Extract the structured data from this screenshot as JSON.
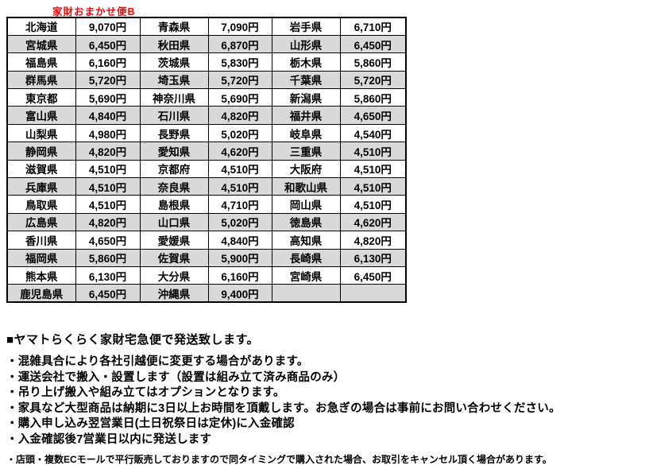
{
  "title": "家財おまかせ便B",
  "colors": {
    "title": "#FF0000",
    "row_alt": "#D9D9D9",
    "border": "#000000"
  },
  "table": {
    "rows": [
      [
        "北海道",
        "9,070円",
        "青森県",
        "7,090円",
        "岩手県",
        "6,710円"
      ],
      [
        "宮城県",
        "6,450円",
        "秋田県",
        "6,870円",
        "山形県",
        "6,450円"
      ],
      [
        "福島県",
        "6,160円",
        "茨城県",
        "5,830円",
        "栃木県",
        "5,860円"
      ],
      [
        "群馬県",
        "5,720円",
        "埼玉県",
        "5,720円",
        "千葉県",
        "5,720円"
      ],
      [
        "東京都",
        "5,690円",
        "神奈川県",
        "5,690円",
        "新潟県",
        "5,860円"
      ],
      [
        "富山県",
        "4,840円",
        "石川県",
        "4,820円",
        "福井県",
        "4,650円"
      ],
      [
        "山梨県",
        "4,980円",
        "長野県",
        "5,020円",
        "岐阜県",
        "4,540円"
      ],
      [
        "静岡県",
        "4,820円",
        "愛知県",
        "4,620円",
        "三重県",
        "4,510円"
      ],
      [
        "滋賀県",
        "4,510円",
        "京都府",
        "4,510円",
        "大阪府",
        "4,510円"
      ],
      [
        "兵庫県",
        "4,510円",
        "奈良県",
        "4,510円",
        "和歌山県",
        "4,510円"
      ],
      [
        "鳥取県",
        "4,510円",
        "島根県",
        "4,710円",
        "岡山県",
        "4,510円"
      ],
      [
        "広島県",
        "4,820円",
        "山口県",
        "5,020円",
        "徳島県",
        "4,620円"
      ],
      [
        "香川県",
        "4,650円",
        "愛媛県",
        "4,840円",
        "高知県",
        "4,820円"
      ],
      [
        "福岡県",
        "5,860円",
        "佐賀県",
        "5,900円",
        "長崎県",
        "6,130円"
      ],
      [
        "熊本県",
        "6,130円",
        "大分県",
        "6,160円",
        "宮崎県",
        "6,450円"
      ],
      [
        "鹿児島県",
        "6,450円",
        "沖縄県",
        "9,400円",
        "",
        ""
      ]
    ]
  },
  "notes": {
    "header": "■ヤマトらくらく家財宅急便で発送致します。",
    "bullets": [
      "・混雑具合により各社引越便に変更する場合があります。",
      "・運送会社で搬入・設置します（設置は組み立て済み商品のみ）",
      "・吊り上げ搬入や組み立てはオプションとなります。",
      "・家具など大型商品は納期に3日以上お時間を頂戴します。お急ぎの場合は事前にお問い合わせください。",
      "・購入申し込み翌営業日(土日祝祭日は定休)に入金確認",
      "・入金確認後7営業日以内に発送します"
    ],
    "footnote": "・店頭・複数ECモールで平行販売しておりますので同タイミングで購入された場合、お取引をキャンセル頂く場合があります。"
  }
}
